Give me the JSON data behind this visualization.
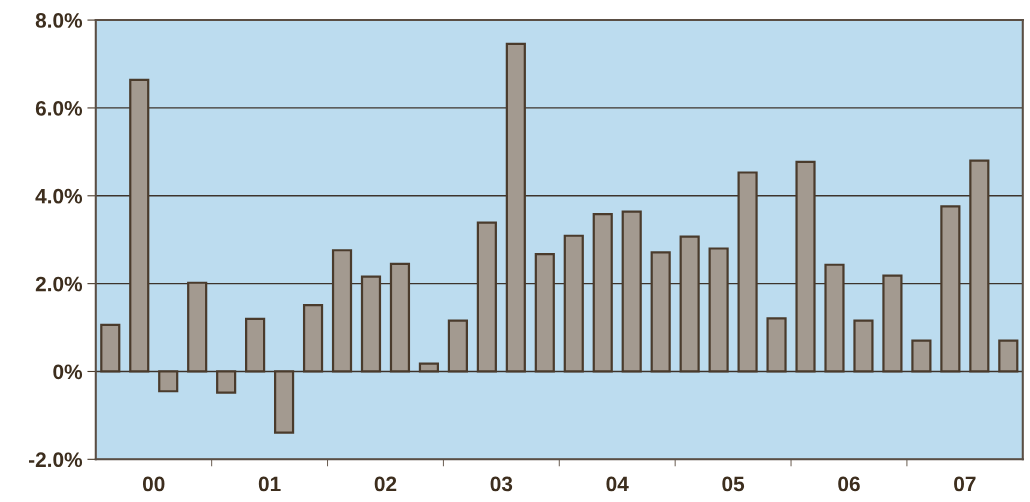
{
  "chart_data": {
    "type": "bar",
    "categories": [
      null,
      "00",
      null,
      null,
      null,
      "01",
      null,
      null,
      null,
      "02",
      null,
      null,
      null,
      "03",
      null,
      null,
      null,
      "04",
      null,
      null,
      null,
      "05",
      null,
      null,
      null,
      "06",
      null,
      null,
      null,
      "07",
      null,
      null
    ],
    "values": [
      1.06,
      6.64,
      -0.45,
      2.02,
      -0.48,
      1.2,
      -1.39,
      1.51,
      2.76,
      2.16,
      2.45,
      0.18,
      1.16,
      3.39,
      7.46,
      2.67,
      3.09,
      3.58,
      3.64,
      2.71,
      3.07,
      2.8,
      4.53,
      1.21,
      4.77,
      2.43,
      1.16,
      2.18,
      0.7,
      3.76,
      4.8,
      0.7
    ],
    "color": "#a39a90",
    "ylim": [
      -2,
      8
    ],
    "yticks": [
      {
        "value": -2,
        "label": "-2.0%"
      },
      {
        "value": 0,
        "label": "0%"
      },
      {
        "value": 2,
        "label": "2.0%"
      },
      {
        "value": 4,
        "label": "4.0%"
      },
      {
        "value": 6,
        "label": "6.0%"
      },
      {
        "value": 8,
        "label": "8.0%"
      }
    ],
    "grid": "y"
  }
}
